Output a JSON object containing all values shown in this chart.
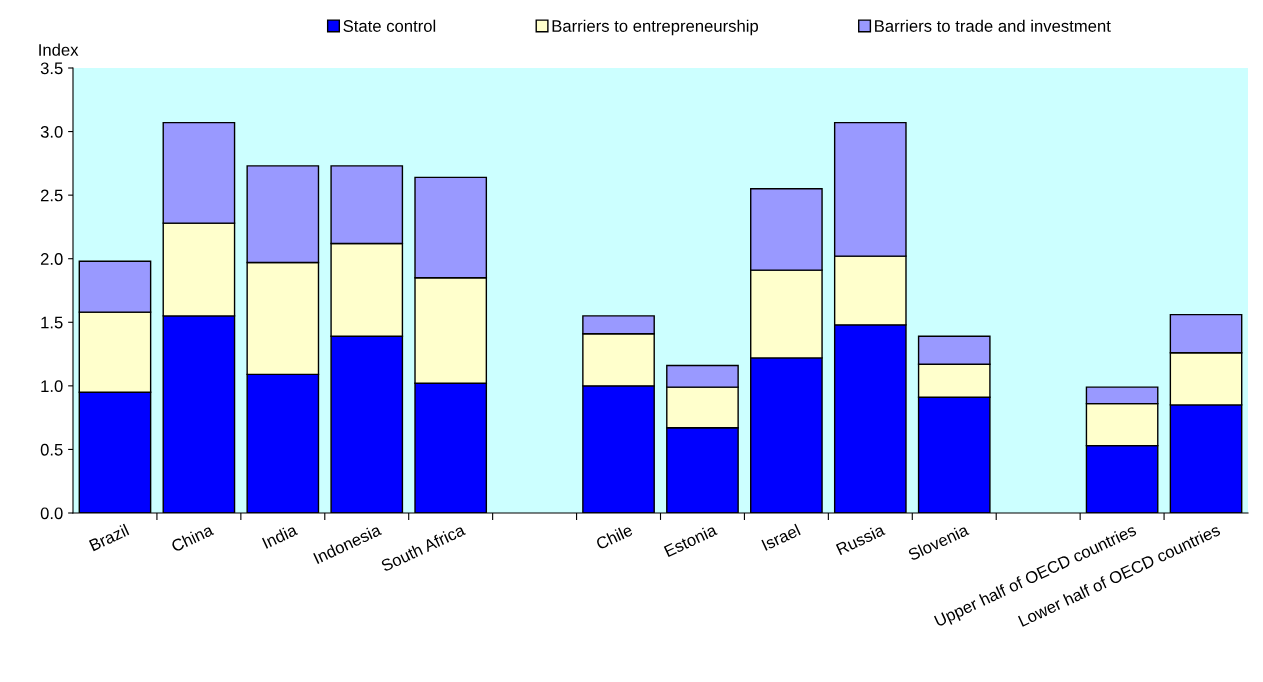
{
  "chart_data": {
    "type": "bar",
    "stacked": true,
    "ylabel": "Index",
    "categories": [
      "Brazil",
      "China",
      "India",
      "Indonesia",
      "South Africa",
      null,
      "Chile",
      "Estonia",
      "Israel",
      "Russia",
      "Slovenia",
      null,
      "Upper half of OECD countries",
      "Lower half of OECD countries"
    ],
    "series": [
      {
        "name": "State control",
        "color": "#0000ff",
        "values": [
          0.95,
          1.55,
          1.09,
          1.39,
          1.02,
          null,
          1.0,
          0.67,
          1.22,
          1.48,
          0.91,
          null,
          0.53,
          0.85
        ]
      },
      {
        "name": "Barriers to entrepreneurship",
        "color": "#ffffcc",
        "values": [
          0.63,
          0.73,
          0.88,
          0.73,
          0.83,
          null,
          0.41,
          0.32,
          0.69,
          0.54,
          0.26,
          null,
          0.33,
          0.41
        ]
      },
      {
        "name": "Barriers to trade and investment",
        "color": "#9999ff",
        "values": [
          0.4,
          0.79,
          0.76,
          0.61,
          0.79,
          null,
          0.14,
          0.17,
          0.64,
          1.05,
          0.22,
          null,
          0.13,
          0.3
        ]
      }
    ],
    "ylim": [
      0,
      3.5
    ],
    "yticks": [
      {
        "value": 0,
        "label": "0.0"
      },
      {
        "value": 0.5,
        "label": "0.5"
      },
      {
        "value": 1,
        "label": "1.0"
      },
      {
        "value": 1.5,
        "label": "1.5"
      },
      {
        "value": 2,
        "label": "2.0"
      },
      {
        "value": 2.5,
        "label": "2.5"
      },
      {
        "value": 3,
        "label": "3.0"
      },
      {
        "value": 3.5,
        "label": "3.5"
      }
    ],
    "grid": false,
    "legend": "top"
  }
}
